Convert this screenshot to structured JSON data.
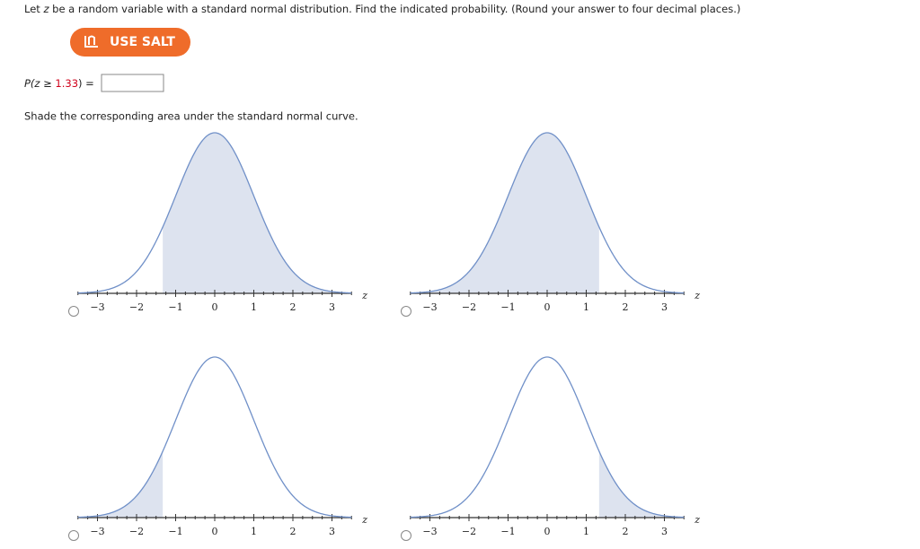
{
  "instructions": {
    "before": "Let ",
    "variable": "z",
    "after": " be a random variable with a standard normal distribution. Find the indicated probability. (Round your answer to four decimal places.)"
  },
  "salt_button": "USE SALT",
  "probability": {
    "prefix": "P(z ≥ ",
    "value": 1.33,
    "suffix": ") ="
  },
  "shade_prompt": "Shade the corresponding area under the standard normal curve.",
  "axis": {
    "ticks": [
      {
        "value": -3,
        "label": "−3"
      },
      {
        "value": -2,
        "label": "−2"
      },
      {
        "value": -1,
        "label": "−1"
      },
      0,
      1,
      2,
      3
    ],
    "variable": "z"
  }
}
